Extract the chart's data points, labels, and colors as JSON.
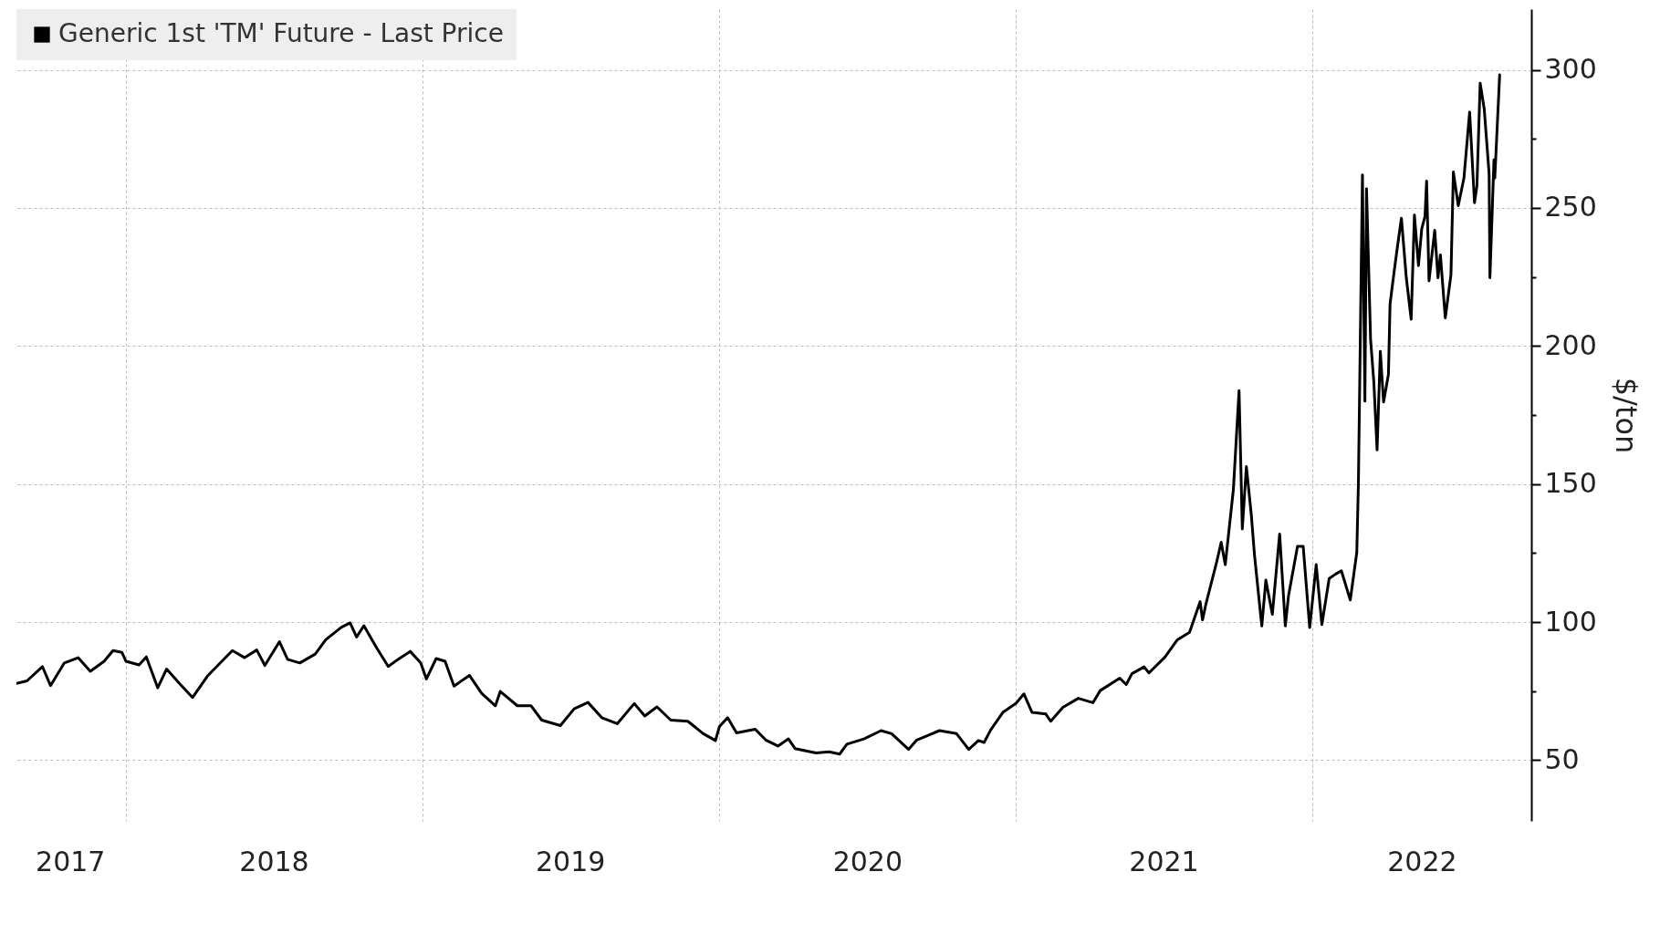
{
  "chart_data": {
    "type": "line",
    "ylabel": "$/ton",
    "legend": "top left",
    "grid": true,
    "line_style": "solid",
    "marker": "none",
    "xlim": [
      "2017-08-19",
      "2022-09-28"
    ],
    "xticks": [
      {
        "value": "2017-10-24",
        "label": "2017"
      },
      {
        "value": "2018-01-01",
        "label": null
      },
      {
        "value": "2018-07-02",
        "label": "2018"
      },
      {
        "value": "2019-01-01",
        "label": null
      },
      {
        "value": "2019-07-02",
        "label": "2019"
      },
      {
        "value": "2020-01-01",
        "label": null
      },
      {
        "value": "2020-07-02",
        "label": "2020"
      },
      {
        "value": "2021-01-01",
        "label": null
      },
      {
        "value": "2021-07-02",
        "label": "2021"
      },
      {
        "value": "2022-01-01",
        "label": null
      },
      {
        "value": "2022-05-16",
        "label": "2022"
      }
    ],
    "ylim": [
      28,
      322
    ],
    "yticks": [
      50,
      {
        "value": 75,
        "label": null
      },
      100,
      {
        "value": 125,
        "label": null
      },
      150,
      {
        "value": 175,
        "label": null
      },
      200,
      {
        "value": 225,
        "label": null
      },
      250,
      {
        "value": 275,
        "label": null
      },
      300
    ],
    "series": [
      {
        "name": "Generic 1st 'TM' Future - Last Price",
        "color": "#000000",
        "x": [
          "2017-08-19",
          "2017-09-01",
          "2017-09-20",
          "2017-09-30",
          "2017-10-17",
          "2017-11-03",
          "2017-11-18",
          "2017-12-05",
          "2017-12-16",
          "2017-12-27",
          "2018-01-01",
          "2018-01-17",
          "2018-01-26",
          "2018-02-09",
          "2018-02-20",
          "2018-03-09",
          "2018-03-24",
          "2018-04-12",
          "2018-05-12",
          "2018-05-27",
          "2018-06-11",
          "2018-06-21",
          "2018-07-09",
          "2018-07-19",
          "2018-08-03",
          "2018-08-22",
          "2018-09-04",
          "2018-09-23",
          "2018-10-04",
          "2018-10-12",
          "2018-10-21",
          "2018-11-05",
          "2018-11-20",
          "2018-12-02",
          "2018-12-17",
          "2018-12-30",
          "2019-01-06",
          "2019-01-18",
          "2019-01-29",
          "2019-02-09",
          "2019-02-28",
          "2019-03-15",
          "2019-04-01",
          "2019-04-07",
          "2019-04-28",
          "2019-05-15",
          "2019-05-28",
          "2019-06-20",
          "2019-07-07",
          "2019-07-24",
          "2019-08-10",
          "2019-08-29",
          "2019-09-19",
          "2019-10-02",
          "2019-10-17",
          "2019-11-03",
          "2019-11-24",
          "2019-12-13",
          "2019-12-28",
          "2020-01-02",
          "2020-01-12",
          "2020-01-23",
          "2020-02-15",
          "2020-02-28",
          "2020-03-14",
          "2020-03-27",
          "2020-04-04",
          "2020-04-30",
          "2020-05-16",
          "2020-05-29",
          "2020-06-07",
          "2020-06-28",
          "2020-07-19",
          "2020-08-01",
          "2020-08-22",
          "2020-09-01",
          "2020-09-29",
          "2020-10-20",
          "2020-11-04",
          "2020-11-16",
          "2020-11-23",
          "2020-12-01",
          "2020-12-16",
          "2021-01-01",
          "2021-01-11",
          "2021-01-21",
          "2021-02-07",
          "2021-02-13",
          "2021-02-28",
          "2021-03-19",
          "2021-04-06",
          "2021-04-15",
          "2021-05-09",
          "2021-05-17",
          "2021-05-24",
          "2021-06-08",
          "2021-06-14",
          "2021-07-04",
          "2021-07-19",
          "2021-08-03",
          "2021-08-16",
          "2021-08-19",
          "2021-08-23",
          "2021-09-05",
          "2021-09-11",
          "2021-09-16",
          "2021-09-26",
          "2021-10-03",
          "2021-10-07",
          "2021-10-12",
          "2021-10-18",
          "2021-10-22",
          "2021-10-31",
          "2021-11-05",
          "2021-11-13",
          "2021-11-22",
          "2021-11-29",
          "2021-12-03",
          "2021-12-14",
          "2021-12-21",
          "2021-12-29",
          "2022-01-06",
          "2022-01-13",
          "2022-01-22",
          "2022-01-30",
          "2022-02-06",
          "2022-02-17",
          "2022-02-25",
          "2022-02-27",
          "2022-03-04",
          "2022-03-07",
          "2022-03-09",
          "2022-03-14",
          "2022-03-18",
          "2022-03-22",
          "2022-03-26",
          "2022-03-30",
          "2022-04-05",
          "2022-04-07",
          "2022-04-12",
          "2022-04-16",
          "2022-04-21",
          "2022-04-27",
          "2022-05-03",
          "2022-05-07",
          "2022-05-12",
          "2022-05-16",
          "2022-05-20",
          "2022-05-22",
          "2022-05-25",
          "2022-06-01",
          "2022-06-05",
          "2022-06-08",
          "2022-06-14",
          "2022-06-21",
          "2022-06-24",
          "2022-06-30",
          "2022-07-07",
          "2022-07-14",
          "2022-07-20",
          "2022-07-23",
          "2022-07-27",
          "2022-08-01",
          "2022-08-07",
          "2022-08-08",
          "2022-08-13",
          "2022-08-14",
          "2022-08-20"
        ],
        "values": [
          77.8,
          78.7,
          83.9,
          77,
          85.2,
          87.1,
          82.2,
          85.8,
          89.7,
          89,
          85.8,
          84.5,
          87.4,
          76.2,
          83,
          77.4,
          72.7,
          80.7,
          89.7,
          87.1,
          89.9,
          84.3,
          92.9,
          86.5,
          85.2,
          88.4,
          93.6,
          98.1,
          99.7,
          94.6,
          98.7,
          91,
          83.9,
          86.5,
          89.4,
          85.2,
          79.4,
          86.8,
          85.8,
          76.8,
          80.7,
          74.2,
          69.7,
          74.9,
          69.7,
          69.7,
          64.5,
          62.5,
          68.6,
          70.9,
          65.4,
          63.2,
          70.5,
          66,
          69.3,
          64.5,
          64.1,
          59.6,
          57.1,
          62.2,
          65.4,
          59.9,
          61.2,
          57.3,
          55.1,
          57.7,
          54.2,
          52.6,
          53,
          52.2,
          55.8,
          57.7,
          60.7,
          59.6,
          53.9,
          57.3,
          60.7,
          59.6,
          53.9,
          57.1,
          56.4,
          60.9,
          67.3,
          70.5,
          74,
          67.3,
          66.7,
          64.1,
          69.1,
          72.4,
          70.8,
          75.2,
          79.7,
          77.4,
          81.3,
          83.8,
          81.6,
          87.4,
          93.6,
          96.3,
          107.4,
          100.8,
          106.3,
          121.3,
          128.9,
          120.8,
          148,
          183.8,
          133.7,
          156.3,
          139.1,
          124.3,
          98.6,
          115.2,
          102.8,
          131.9,
          98.6,
          109.7,
          127.4,
          127.4,
          98,
          120.8,
          99.1,
          115.8,
          117.4,
          118.6,
          108,
          125.2,
          150.2,
          262,
          180,
          256.9,
          202.4,
          187,
          162.4,
          198,
          179.7,
          189.7,
          215.2,
          226.9,
          235.8,
          246.3,
          224.7,
          209.7,
          247.4,
          229.1,
          242.4,
          246.9,
          259.7,
          223.6,
          241.9,
          224.7,
          233,
          210.2,
          225.8,
          263,
          250.8,
          260.8,
          284.7,
          251.9,
          258,
          295.2,
          285.8,
          262.4,
          224.7,
          267.4,
          260.8,
          298.2
        ]
      }
    ]
  }
}
